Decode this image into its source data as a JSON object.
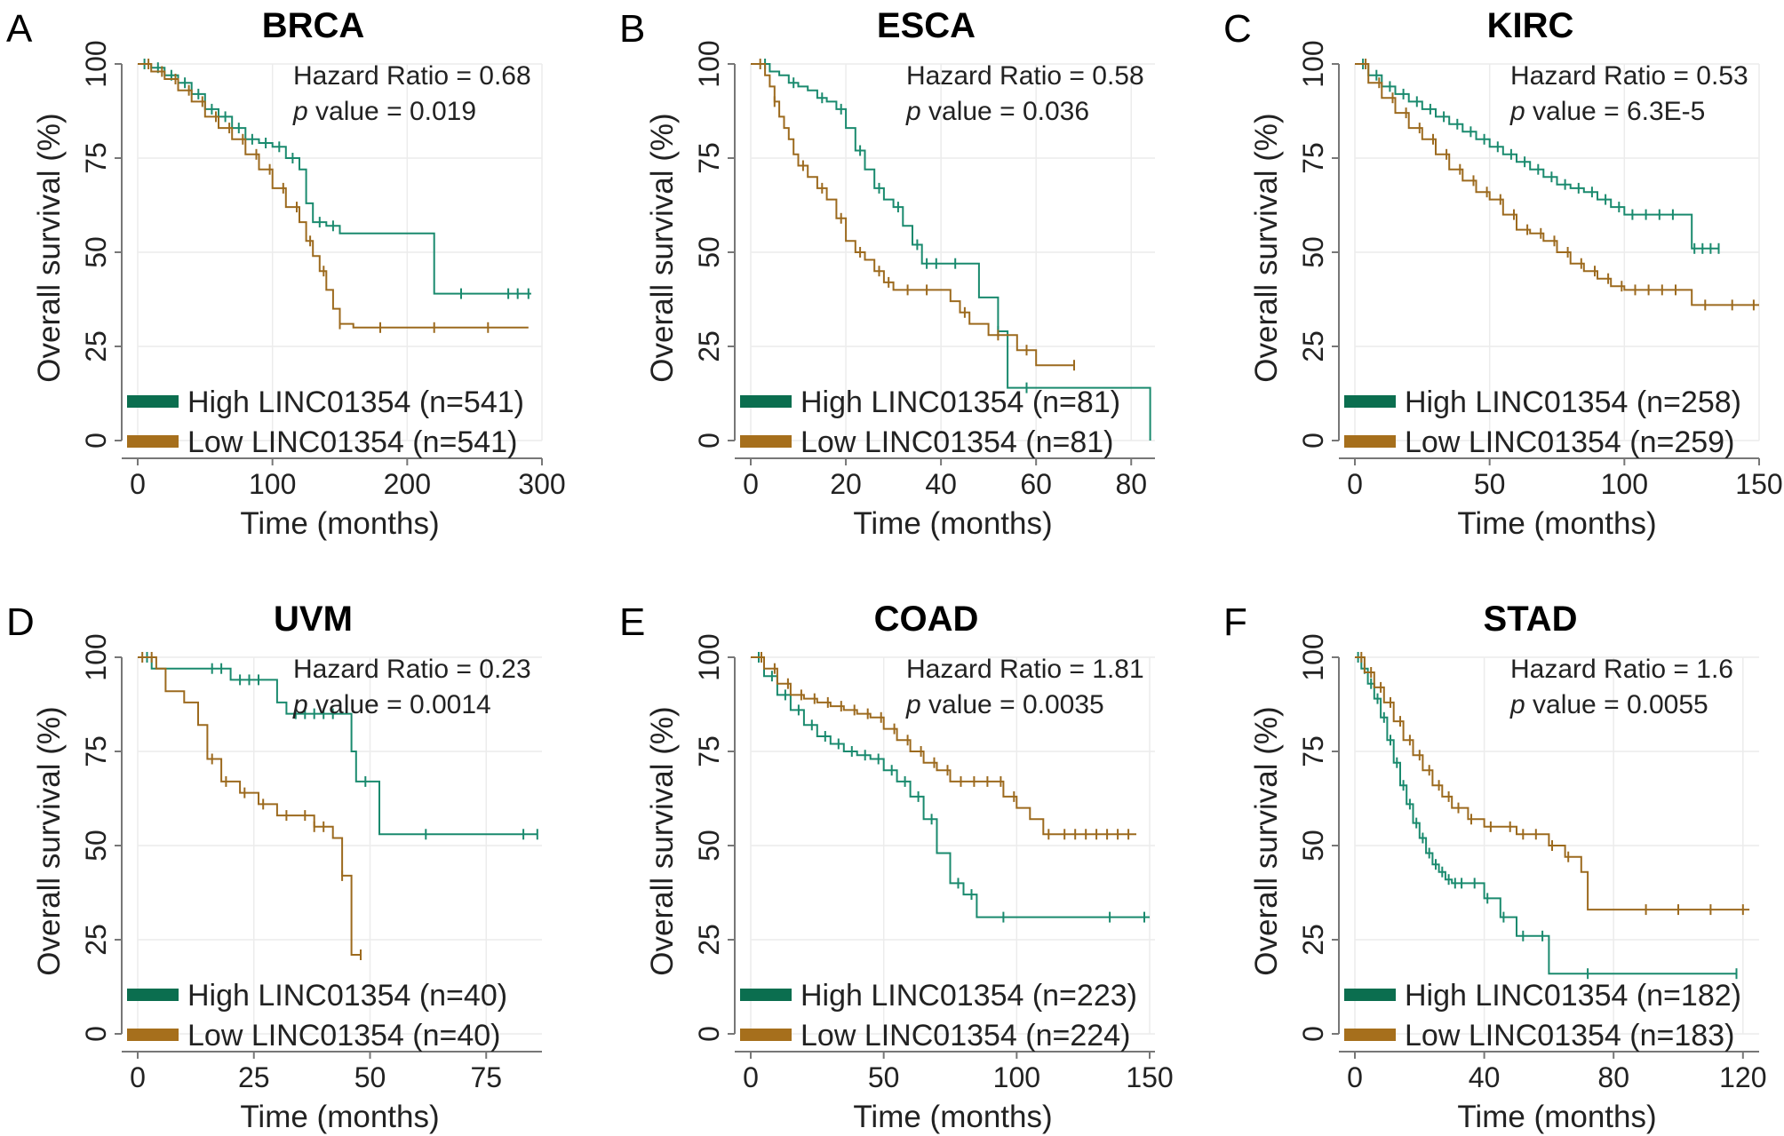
{
  "figure": {
    "annotation_labels": {
      "hazard_ratio": "Hazard Ratio = ",
      "p_italic": "p",
      "p_value": " value = "
    }
  },
  "chart_data": [
    {
      "panel_letter": "A",
      "type": "line",
      "title": "BRCA",
      "xlabel": "Time (months)",
      "ylabel": "Overall survival (%)",
      "xlim": [
        0,
        300
      ],
      "ylim": [
        0,
        100
      ],
      "x_ticks": [
        0,
        100,
        200,
        300
      ],
      "y_ticks": [
        0,
        25,
        50,
        75,
        100
      ],
      "hazard_ratio": "0.68",
      "p_value": "0.019",
      "legend_position": "bottom-left",
      "series": [
        {
          "name": "High LINC01354 (n=541)",
          "color": "#1a8a6e",
          "legend_color": "#0b6e4f",
          "x": [
            0,
            10,
            20,
            30,
            40,
            50,
            60,
            70,
            80,
            90,
            100,
            110,
            120,
            125,
            130,
            140,
            150,
            160,
            170,
            180,
            190,
            200,
            216,
            220,
            240,
            260,
            280,
            292
          ],
          "y": [
            100,
            99,
            97,
            95,
            92,
            88,
            86,
            83,
            80,
            79,
            78,
            75,
            72,
            63,
            58,
            57,
            55,
            55,
            55,
            55,
            55,
            55,
            55,
            39,
            39,
            39,
            39,
            39
          ],
          "censor_x": [
            5,
            15,
            25,
            35,
            45,
            55,
            65,
            75,
            85,
            95,
            105,
            115,
            135,
            145,
            240,
            275,
            282,
            290
          ]
        },
        {
          "name": "Low LINC01354 (n=541)",
          "color": "#9c6a1e",
          "legend_color": "#a66f1c",
          "x": [
            0,
            10,
            20,
            30,
            40,
            50,
            60,
            70,
            80,
            90,
            100,
            110,
            120,
            125,
            130,
            135,
            140,
            145,
            150,
            160,
            170,
            200,
            250,
            290
          ],
          "y": [
            100,
            98,
            96,
            93,
            90,
            86,
            83,
            80,
            76,
            72,
            67,
            62,
            58,
            53,
            49,
            45,
            40,
            35,
            31,
            30,
            30,
            30,
            30,
            30
          ],
          "censor_x": [
            8,
            18,
            28,
            38,
            48,
            58,
            68,
            78,
            88,
            98,
            108,
            118,
            128,
            138,
            150,
            180,
            220,
            260
          ]
        }
      ]
    },
    {
      "panel_letter": "B",
      "type": "line",
      "title": "ESCA",
      "xlabel": "Time (months)",
      "ylabel": "Overall survival (%)",
      "xlim": [
        0,
        85
      ],
      "ylim": [
        0,
        100
      ],
      "x_ticks": [
        0,
        20,
        40,
        60,
        80
      ],
      "y_ticks": [
        0,
        25,
        50,
        75,
        100
      ],
      "hazard_ratio": "0.58",
      "p_value": "0.036",
      "legend_position": "bottom-left",
      "series": [
        {
          "name": "High LINC01354 (n=81)",
          "color": "#1a8a6e",
          "legend_color": "#0b6e4f",
          "x": [
            0,
            4,
            6,
            8,
            10,
            12,
            14,
            16,
            18,
            20,
            22,
            24,
            26,
            28,
            30,
            32,
            34,
            36,
            40,
            44,
            48,
            52,
            54,
            56,
            60,
            70,
            84
          ],
          "y": [
            100,
            98,
            97,
            95,
            94,
            93,
            91,
            90,
            88,
            83,
            77,
            72,
            67,
            64,
            62,
            57,
            52,
            47,
            47,
            47,
            38,
            29,
            14,
            14,
            14,
            14,
            0
          ],
          "censor_x": [
            3,
            9,
            15,
            19,
            23,
            27,
            31,
            35,
            37,
            39,
            43,
            52,
            58
          ]
        },
        {
          "name": "Low LINC01354 (n=81)",
          "color": "#9c6a1e",
          "legend_color": "#a66f1c",
          "x": [
            0,
            3,
            4,
            5,
            6,
            7,
            8,
            9,
            10,
            12,
            14,
            16,
            18,
            20,
            22,
            24,
            26,
            28,
            30,
            34,
            38,
            40,
            42,
            44,
            46,
            50,
            56,
            60,
            68
          ],
          "y": [
            100,
            97,
            94,
            90,
            86,
            83,
            80,
            76,
            73,
            70,
            67,
            64,
            59,
            53,
            50,
            48,
            45,
            42,
            40,
            40,
            40,
            40,
            37,
            34,
            31,
            28,
            24,
            20,
            20
          ],
          "censor_x": [
            2,
            5,
            11,
            15,
            19,
            23,
            27,
            29,
            33,
            37,
            45,
            52,
            58,
            68
          ]
        }
      ]
    },
    {
      "panel_letter": "C",
      "type": "line",
      "title": "KIRC",
      "xlabel": "Time (months)",
      "ylabel": "Overall survival (%)",
      "xlim": [
        0,
        150
      ],
      "ylim": [
        0,
        100
      ],
      "x_ticks": [
        0,
        50,
        100,
        150
      ],
      "y_ticks": [
        0,
        25,
        50,
        75,
        100
      ],
      "hazard_ratio": "0.53",
      "p_value": "6.3E-5",
      "legend_position": "bottom-left",
      "series": [
        {
          "name": "High LINC01354 (n=258)",
          "color": "#1a8a6e",
          "legend_color": "#0b6e4f",
          "x": [
            0,
            5,
            10,
            15,
            20,
            25,
            30,
            35,
            40,
            45,
            50,
            55,
            60,
            65,
            70,
            75,
            80,
            85,
            90,
            95,
            100,
            110,
            120,
            125,
            135
          ],
          "y": [
            100,
            97,
            94,
            92,
            90,
            88,
            86,
            84,
            82,
            80,
            78,
            76,
            74,
            72,
            70,
            68,
            67,
            66,
            64,
            62,
            60,
            60,
            60,
            51,
            51
          ],
          "censor_x": [
            3,
            8,
            13,
            18,
            23,
            28,
            33,
            38,
            43,
            48,
            53,
            58,
            63,
            68,
            73,
            78,
            83,
            88,
            93,
            98,
            103,
            108,
            113,
            118,
            126,
            129,
            132,
            135
          ]
        },
        {
          "name": "Low LINC01354 (n=259)",
          "color": "#9c6a1e",
          "legend_color": "#a66f1c",
          "x": [
            0,
            5,
            10,
            15,
            20,
            25,
            30,
            35,
            40,
            45,
            50,
            55,
            60,
            65,
            70,
            75,
            80,
            85,
            90,
            95,
            100,
            110,
            120,
            125,
            150
          ],
          "y": [
            100,
            95,
            91,
            87,
            83,
            80,
            76,
            72,
            69,
            66,
            64,
            60,
            56,
            55,
            53,
            50,
            47,
            45,
            43,
            41,
            40,
            40,
            40,
            36,
            36
          ],
          "censor_x": [
            4,
            9,
            14,
            19,
            24,
            29,
            34,
            39,
            44,
            49,
            54,
            59,
            64,
            69,
            74,
            79,
            84,
            89,
            94,
            99,
            104,
            109,
            114,
            119,
            130,
            140,
            148
          ]
        }
      ]
    },
    {
      "panel_letter": "D",
      "type": "line",
      "title": "UVM",
      "xlabel": "Time (months)",
      "ylabel": "Overall survival (%)",
      "xlim": [
        0,
        87
      ],
      "ylim": [
        0,
        100
      ],
      "x_ticks": [
        0,
        25,
        50,
        75
      ],
      "y_ticks": [
        0,
        25,
        50,
        75,
        100
      ],
      "hazard_ratio": "0.23",
      "p_value": "0.0014",
      "legend_position": "bottom-left",
      "series": [
        {
          "name": "High LINC01354 (n=40)",
          "color": "#1a8a6e",
          "legend_color": "#0b6e4f",
          "x": [
            0,
            3,
            15,
            20,
            28,
            30,
            32,
            45,
            46,
            47,
            50,
            52,
            60,
            86
          ],
          "y": [
            100,
            97,
            97,
            94,
            94,
            88,
            85,
            85,
            75,
            67,
            67,
            53,
            53,
            53
          ],
          "censor_x": [
            2,
            16,
            18,
            22,
            24,
            26,
            34,
            36,
            38,
            40,
            42,
            49,
            62,
            83,
            86
          ]
        },
        {
          "name": "Low LINC01354 (n=40)",
          "color": "#9c6a1e",
          "legend_color": "#a66f1c",
          "x": [
            0,
            4,
            6,
            10,
            13,
            15,
            18,
            22,
            26,
            30,
            35,
            38,
            42,
            44,
            46,
            48
          ],
          "y": [
            100,
            97,
            91,
            88,
            82,
            73,
            67,
            64,
            61,
            58,
            58,
            55,
            52,
            42,
            21,
            21
          ],
          "censor_x": [
            1,
            3,
            16,
            19,
            23,
            27,
            32,
            36,
            38,
            40,
            44,
            48
          ]
        }
      ]
    },
    {
      "panel_letter": "E",
      "type": "line",
      "title": "COAD",
      "xlabel": "Time (months)",
      "ylabel": "Overall survival (%)",
      "xlim": [
        0,
        152
      ],
      "ylim": [
        0,
        100
      ],
      "x_ticks": [
        0,
        50,
        100,
        150
      ],
      "y_ticks": [
        0,
        25,
        50,
        75,
        100
      ],
      "hazard_ratio": "1.81",
      "p_value": "0.0035",
      "legend_position": "bottom-left",
      "series": [
        {
          "name": "High LINC01354 (n=223)",
          "color": "#1a8a6e",
          "legend_color": "#0b6e4f",
          "x": [
            0,
            5,
            10,
            15,
            20,
            25,
            30,
            35,
            40,
            45,
            50,
            55,
            60,
            65,
            70,
            75,
            80,
            85,
            90,
            100,
            150
          ],
          "y": [
            100,
            95,
            90,
            86,
            82,
            79,
            77,
            75,
            74,
            73,
            70,
            67,
            63,
            57,
            48,
            40,
            37,
            31,
            31,
            31,
            31
          ],
          "censor_x": [
            3,
            8,
            13,
            18,
            23,
            28,
            33,
            38,
            43,
            48,
            53,
            58,
            63,
            68,
            78,
            83,
            95,
            135,
            148
          ]
        },
        {
          "name": "Low LINC01354 (n=224)",
          "color": "#9c6a1e",
          "legend_color": "#a66f1c",
          "x": [
            0,
            5,
            10,
            15,
            20,
            25,
            30,
            35,
            40,
            45,
            50,
            55,
            60,
            65,
            70,
            75,
            80,
            90,
            95,
            100,
            105,
            110,
            115,
            145
          ],
          "y": [
            100,
            97,
            93,
            90,
            89,
            88,
            87,
            86,
            85,
            84,
            81,
            78,
            75,
            72,
            70,
            67,
            67,
            67,
            63,
            60,
            57,
            53,
            53,
            53
          ],
          "censor_x": [
            4,
            9,
            14,
            19,
            24,
            29,
            34,
            39,
            44,
            49,
            54,
            59,
            64,
            69,
            74,
            79,
            84,
            89,
            94,
            99,
            112,
            118,
            122,
            126,
            130,
            134,
            138,
            142
          ]
        }
      ]
    },
    {
      "panel_letter": "F",
      "type": "line",
      "title": "STAD",
      "xlabel": "Time (months)",
      "ylabel": "Overall survival (%)",
      "xlim": [
        0,
        125
      ],
      "ylim": [
        0,
        100
      ],
      "x_ticks": [
        0,
        40,
        80,
        120
      ],
      "y_ticks": [
        0,
        25,
        50,
        75,
        100
      ],
      "hazard_ratio": "1.6",
      "p_value": "0.0055",
      "legend_position": "bottom-left",
      "series": [
        {
          "name": "High LINC01354 (n=182)",
          "color": "#1a8a6e",
          "legend_color": "#0b6e4f",
          "x": [
            0,
            2,
            4,
            6,
            8,
            10,
            12,
            14,
            16,
            18,
            20,
            22,
            24,
            26,
            28,
            30,
            35,
            40,
            45,
            50,
            55,
            60,
            70,
            80,
            100,
            118
          ],
          "y": [
            100,
            97,
            93,
            89,
            84,
            78,
            72,
            66,
            61,
            56,
            52,
            48,
            45,
            43,
            41,
            40,
            40,
            36,
            31,
            26,
            26,
            16,
            16,
            16,
            16,
            16
          ],
          "censor_x": [
            1,
            3,
            5,
            7,
            9,
            11,
            13,
            15,
            17,
            19,
            21,
            23,
            25,
            27,
            29,
            31,
            33,
            37,
            41,
            46,
            52,
            58,
            72,
            118
          ]
        },
        {
          "name": "Low LINC01354 (n=183)",
          "color": "#9c6a1e",
          "legend_color": "#a66f1c",
          "x": [
            0,
            3,
            6,
            9,
            12,
            15,
            18,
            21,
            24,
            27,
            30,
            35,
            40,
            45,
            50,
            55,
            60,
            65,
            70,
            72,
            75,
            80,
            100,
            122
          ],
          "y": [
            100,
            96,
            92,
            88,
            83,
            78,
            74,
            70,
            66,
            63,
            60,
            57,
            55,
            55,
            53,
            53,
            50,
            47,
            43,
            33,
            33,
            33,
            33,
            33
          ],
          "censor_x": [
            2,
            5,
            8,
            11,
            14,
            17,
            20,
            23,
            26,
            29,
            32,
            36,
            42,
            48,
            52,
            56,
            61,
            66,
            90,
            100,
            110,
            120
          ]
        }
      ]
    }
  ]
}
